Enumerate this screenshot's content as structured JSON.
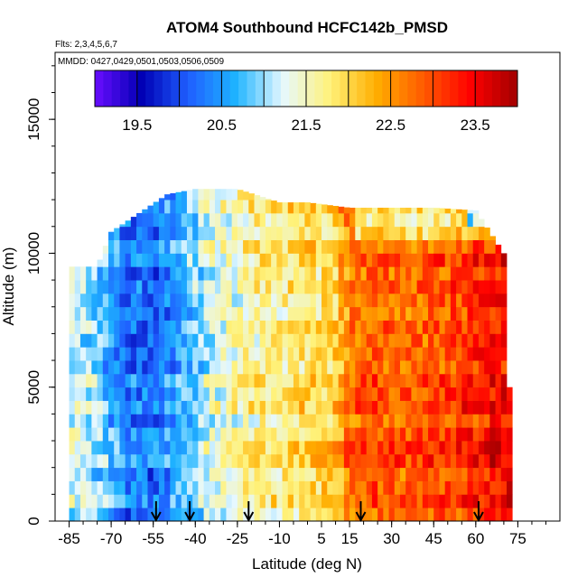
{
  "chart_data": {
    "type": "heatmap",
    "title": "ATOM4 Southbound HCFC142b_PMSD",
    "flights_label": "Flts: 2,3,4,5,6,7",
    "dates_label": "MMDD: 0427,0429,0501,0503,0506,0509",
    "xlabel": "Latitude (deg N)",
    "ylabel": "Altitude (m)",
    "xlim": [
      -90,
      90
    ],
    "ylim": [
      0,
      17500
    ],
    "x_ticks": [
      -85,
      -70,
      -55,
      -40,
      -25,
      -10,
      5,
      15,
      30,
      45,
      60,
      75
    ],
    "y_ticks": [
      0,
      5000,
      10000,
      15000
    ],
    "colorbar": {
      "min": 19.0,
      "max": 24.0,
      "tick_values": [
        19.5,
        20.5,
        21.5,
        22.5,
        23.5
      ],
      "tick_labels": [
        "19.5",
        "20.5",
        "21.5",
        "22.5",
        "23.5"
      ],
      "stops": [
        "#6a0dff",
        "#0000b4",
        "#1f5fff",
        "#1eb4ff",
        "#e6f8ff",
        "#fff27a",
        "#ffae00",
        "#ff5a00",
        "#ff0000",
        "#a00000"
      ]
    },
    "arrow_latitudes": [
      -54,
      -42,
      -21,
      19,
      61
    ],
    "altitude_limits_by_latitude": [
      [
        -75,
        9500
      ],
      [
        -70,
        10800
      ],
      [
        -60,
        11500
      ],
      [
        -50,
        12200
      ],
      [
        -40,
        12400
      ],
      [
        -25,
        12400
      ],
      [
        -10,
        11900
      ],
      [
        0,
        11900
      ],
      [
        15,
        11700
      ],
      [
        30,
        11700
      ],
      [
        45,
        11700
      ],
      [
        60,
        11600
      ],
      [
        70,
        10000
      ],
      [
        72,
        5000
      ]
    ],
    "concentration_by_latitude": [
      [
        -85,
        21.3
      ],
      [
        -75,
        20.9
      ],
      [
        -65,
        20.3
      ],
      [
        -55,
        20.2
      ],
      [
        -45,
        20.6
      ],
      [
        -35,
        21.2
      ],
      [
        -25,
        21.5
      ],
      [
        -15,
        21.7
      ],
      [
        -5,
        21.8
      ],
      [
        5,
        21.9
      ],
      [
        10,
        22.1
      ],
      [
        15,
        22.7
      ],
      [
        25,
        22.9
      ],
      [
        35,
        22.8
      ],
      [
        45,
        22.9
      ],
      [
        55,
        23.1
      ],
      [
        65,
        23.3
      ],
      [
        72,
        23.4
      ]
    ]
  }
}
